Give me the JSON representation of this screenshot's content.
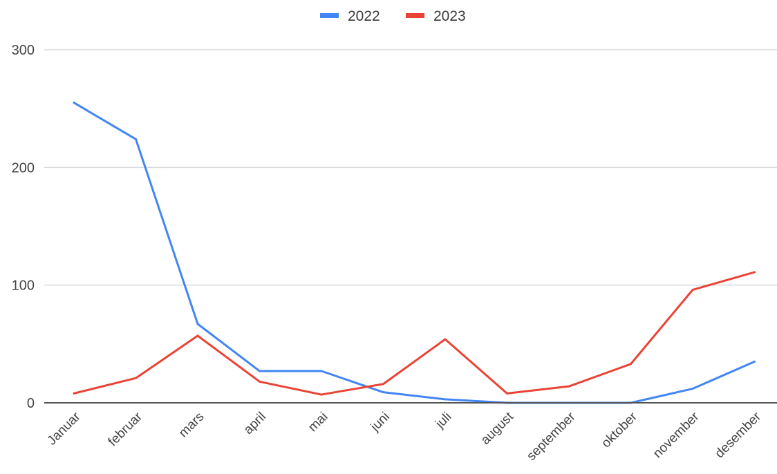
{
  "chart_data": {
    "type": "line",
    "categories": [
      "Januar",
      "februar",
      "mars",
      "april",
      "mai",
      "juni",
      "juli",
      "august",
      "september",
      "oktober",
      "november",
      "desember"
    ],
    "series": [
      {
        "name": "2022",
        "color": "#4285f4",
        "values": [
          255,
          224,
          67,
          27,
          27,
          9,
          3,
          0,
          0,
          0,
          12,
          35
        ]
      },
      {
        "name": "2023",
        "color": "#ea4335",
        "values": [
          8,
          21,
          57,
          18,
          7,
          16,
          54,
          8,
          14,
          33,
          96,
          111
        ]
      }
    ],
    "yticks": [
      "0",
      "100",
      "200",
      "300"
    ],
    "ylim": [
      0,
      300
    ],
    "grid": true,
    "legend": "top-center",
    "title": "",
    "xlabel": "",
    "ylabel": ""
  }
}
